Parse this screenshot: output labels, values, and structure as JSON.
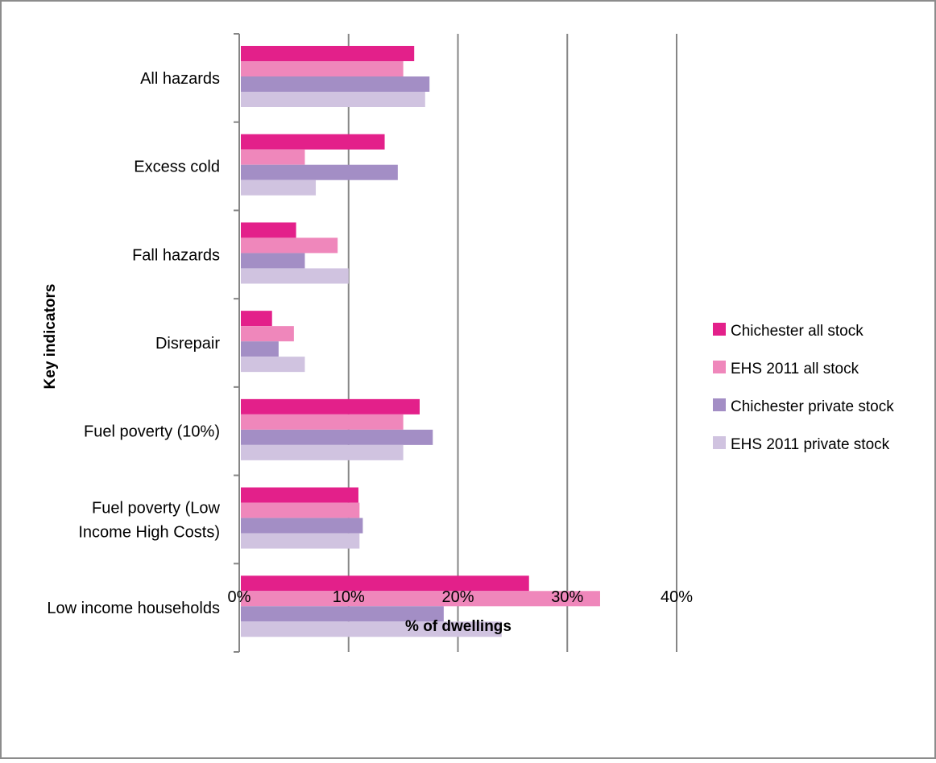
{
  "chart_data": {
    "type": "bar",
    "orientation": "horizontal",
    "categories": [
      [
        "All hazards"
      ],
      [
        "Excess cold"
      ],
      [
        "Fall hazards"
      ],
      [
        "Disrepair"
      ],
      [
        "Fuel poverty (10%)"
      ],
      [
        "Fuel poverty (Low",
        "Income High Costs)"
      ],
      [
        "Low income households"
      ]
    ],
    "series": [
      {
        "name": "Chichester all stock",
        "color": "#e3208a",
        "values": [
          16,
          13.3,
          5.2,
          3,
          16.5,
          10.9,
          26.5
        ]
      },
      {
        "name": "EHS 2011 all stock",
        "color": "#ef87bb",
        "values": [
          15,
          6,
          9,
          5,
          15,
          11,
          33
        ]
      },
      {
        "name": "Chichester private stock",
        "color": "#a38ec5",
        "values": [
          17.4,
          14.5,
          6,
          3.6,
          17.7,
          11.3,
          18.7
        ]
      },
      {
        "name": "EHS 2011 private stock",
        "color": "#d0c3e0",
        "values": [
          17,
          7,
          10,
          6,
          15,
          11,
          24
        ]
      }
    ],
    "title": "",
    "xlabel": "% of dwellings",
    "ylabel": "Key indicators",
    "xlim": [
      0,
      40
    ],
    "xticks": [
      0,
      10,
      20,
      30,
      40
    ],
    "xtick_labels": [
      "0%",
      "10%",
      "20%",
      "30%",
      "40%"
    ],
    "grid": true,
    "legend_position": "right"
  }
}
